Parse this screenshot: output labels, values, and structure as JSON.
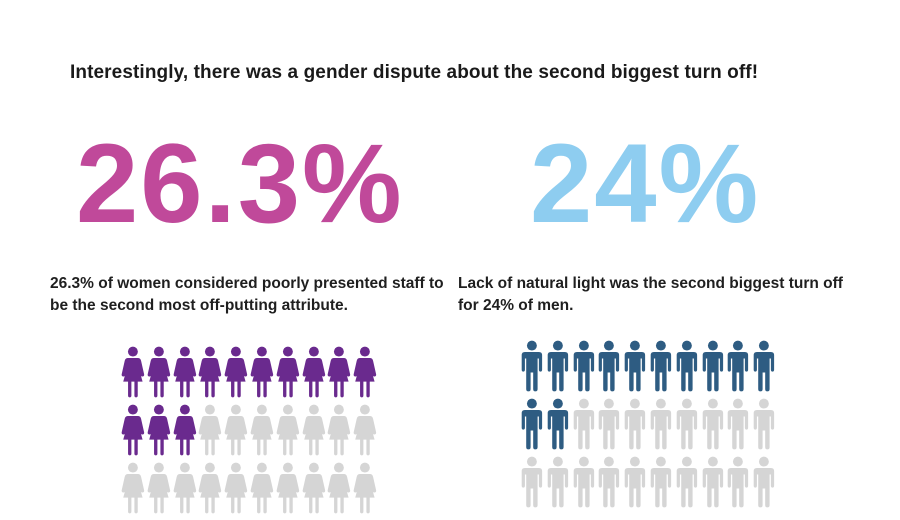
{
  "headline": "Interestingly, there was a gender dispute about the second biggest turn off!",
  "women": {
    "stat": "26.3%",
    "caption": "26.3% of women considered poorly presented staff to be the second most off-putting attribute.",
    "share": 0.263,
    "icon": "woman-icon",
    "color": "#c0499a",
    "icon_color": "#6a2a8e",
    "icon_inactive_color": "#d5d5d5"
  },
  "men": {
    "stat": "24%",
    "caption": "Lack of natural light was the second biggest turn off for 24% of men.",
    "share": 0.24,
    "icon": "man-icon",
    "color": "#8ecdf0",
    "icon_color": "#2e5c82",
    "icon_inactive_color": "#d5d5d5"
  }
}
